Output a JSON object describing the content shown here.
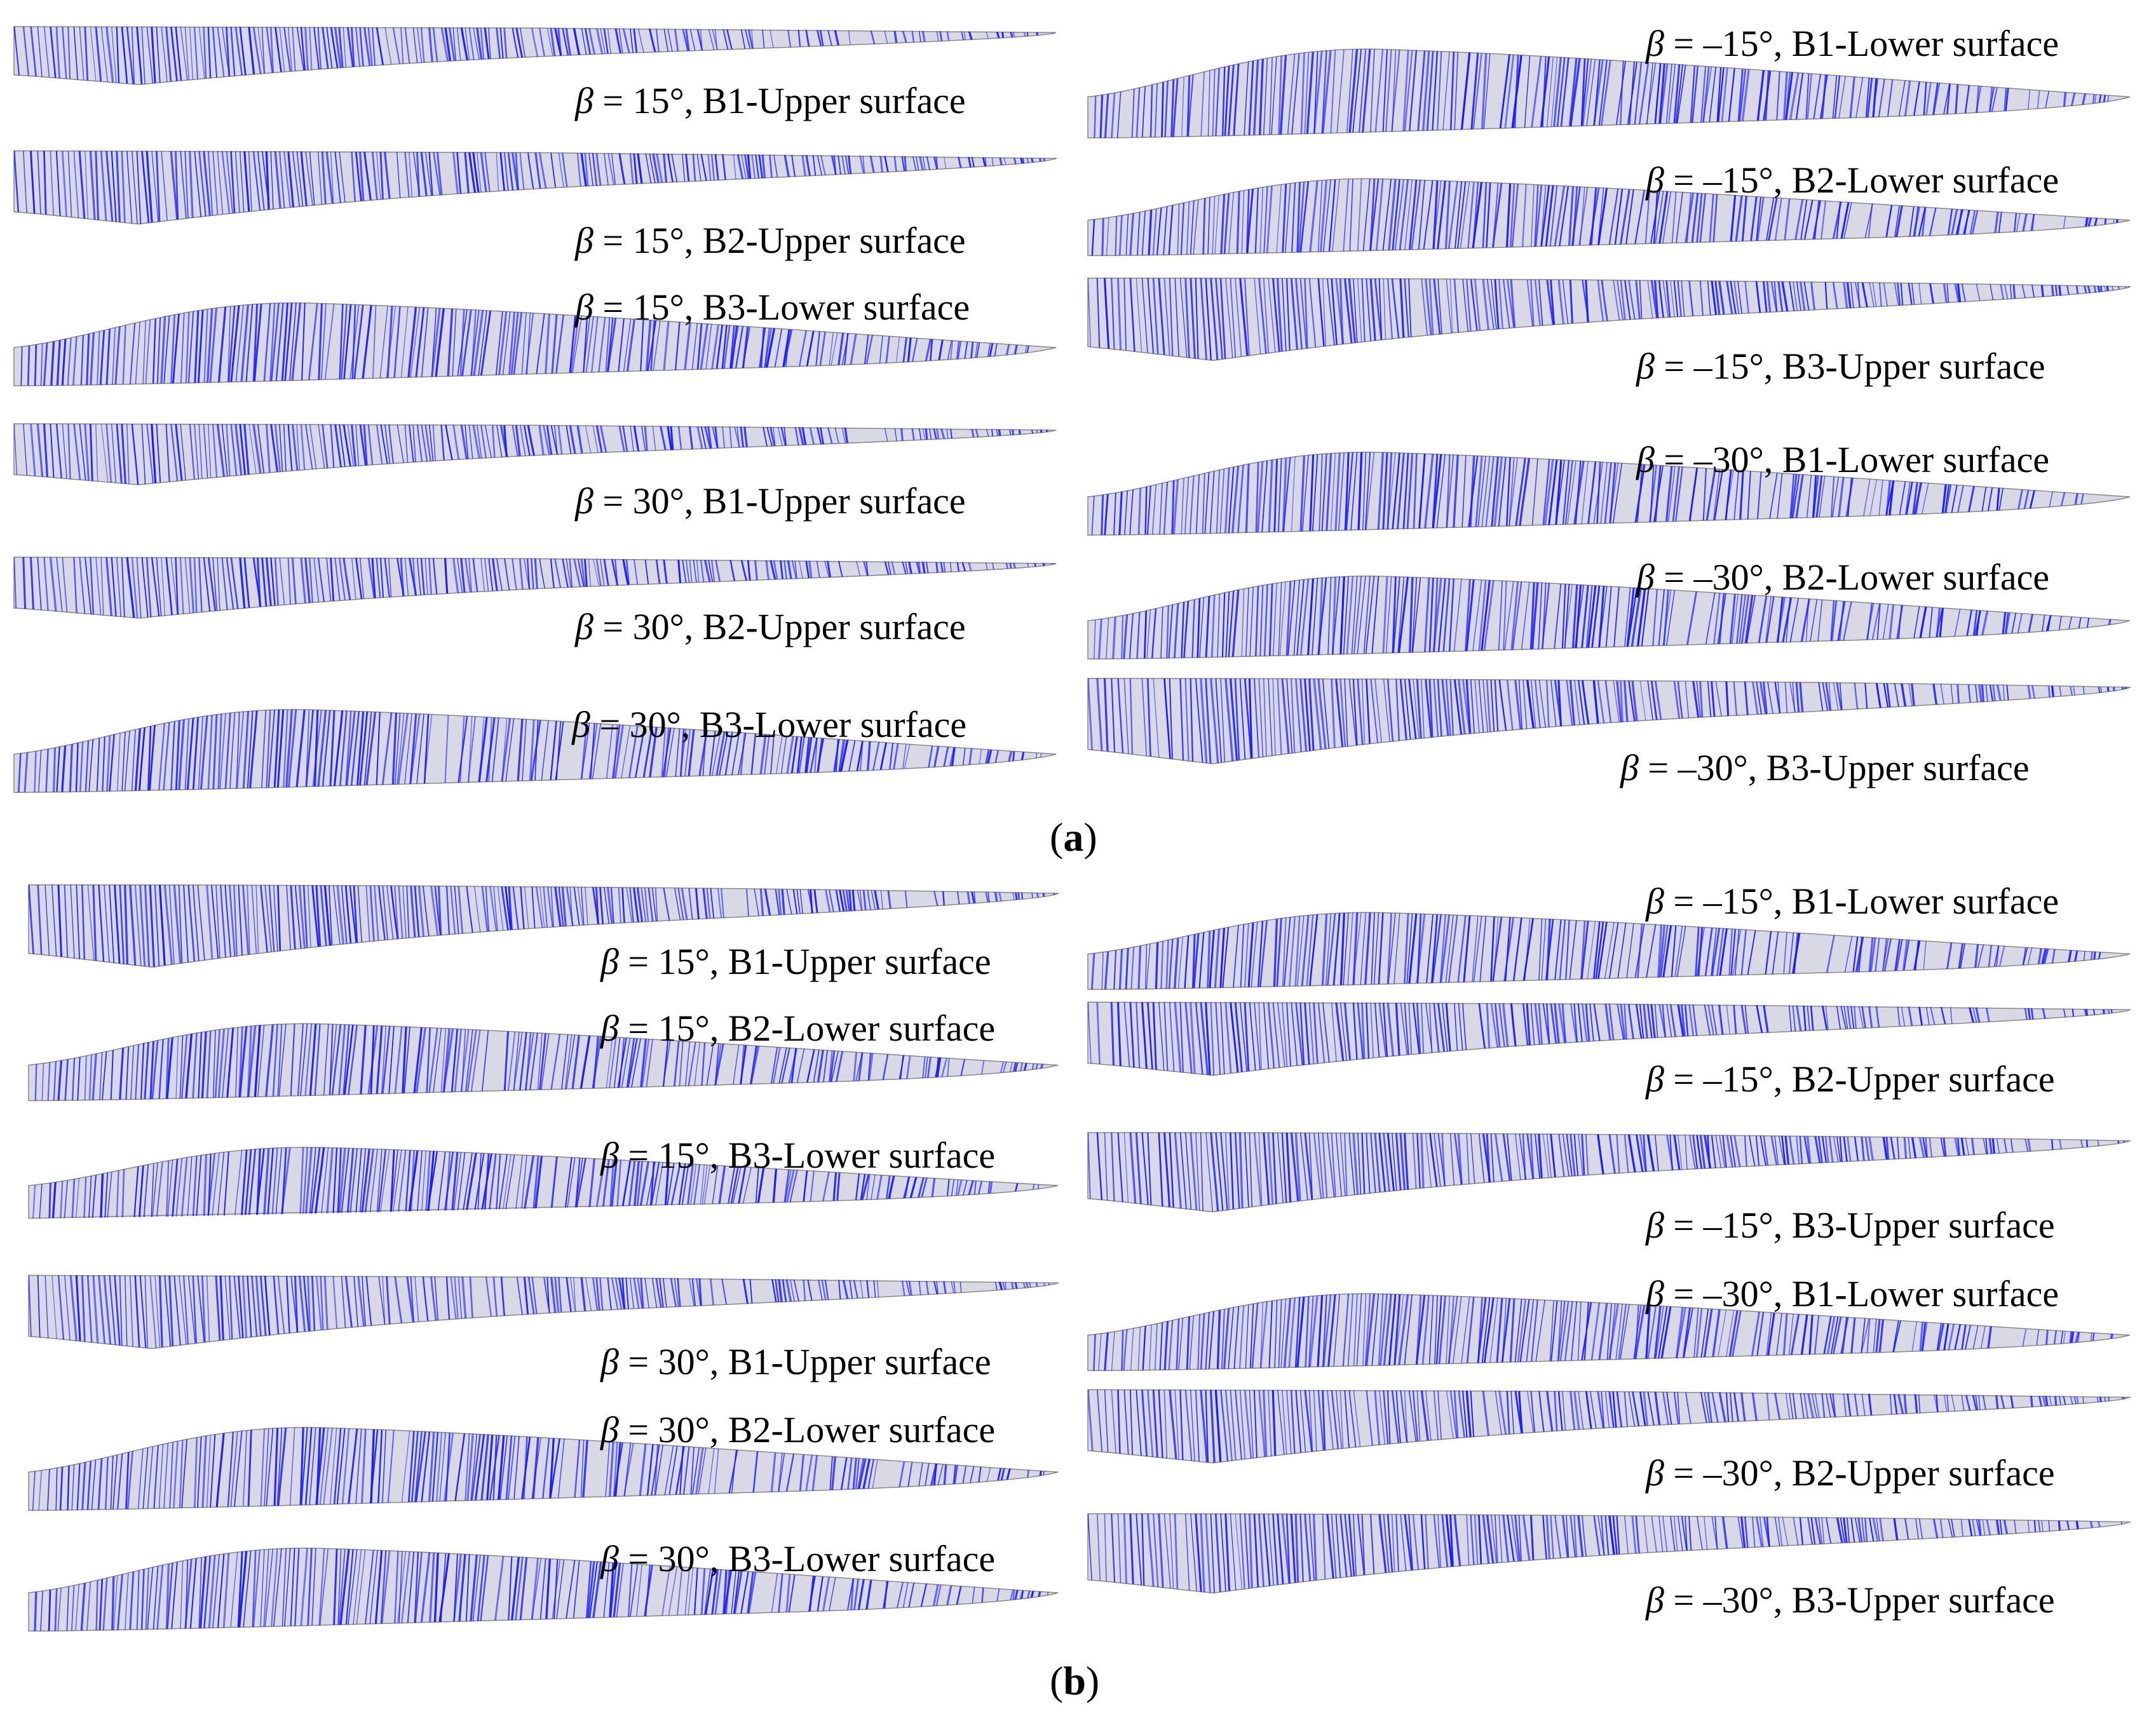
{
  "figure": {
    "subfigures": [
      {
        "label": "a",
        "panels": [
          {
            "beta": "β",
            "text": " = 15°, B1-Upper surface",
            "surface": "upper"
          },
          {
            "beta": "β",
            "text": " = 15°, B2-Upper surface",
            "surface": "upper"
          },
          {
            "beta": "β",
            "text": " = 15°, B3-Lower surface",
            "surface": "lower"
          },
          {
            "beta": "β",
            "text": " = 30°, B1-Upper surface",
            "surface": "upper"
          },
          {
            "beta": "β",
            "text": " = 30°, B2-Upper surface",
            "surface": "upper"
          },
          {
            "beta": "β",
            "text": " = 30°, B3-Lower surface",
            "surface": "lower"
          },
          {
            "beta": "β",
            "text": " = –15°, B1-Lower surface",
            "surface": "lower"
          },
          {
            "beta": "β",
            "text": " = –15°, B2-Lower surface",
            "surface": "lower"
          },
          {
            "beta": "β",
            "text": " = –15°, B3-Upper surface",
            "surface": "upper"
          },
          {
            "beta": "β",
            "text": " = –30°, B1-Lower surface",
            "surface": "lower"
          },
          {
            "beta": "β",
            "text": " = –30°, B2-Lower surface",
            "surface": "lower"
          },
          {
            "beta": "β",
            "text": " = –30°, B3-Upper surface",
            "surface": "upper"
          }
        ]
      },
      {
        "label": "b",
        "panels": [
          {
            "beta": "β",
            "text": " = 15°, B1-Upper surface",
            "surface": "upper"
          },
          {
            "beta": "β",
            "text": " = 15°, B2-Lower surface",
            "surface": "lower"
          },
          {
            "beta": "β",
            "text": " = 15°, B3-Lower surface",
            "surface": "lower"
          },
          {
            "beta": "β",
            "text": " = 30°, B1-Upper surface",
            "surface": "upper"
          },
          {
            "beta": "β",
            "text": " = 30°, B2-Lower surface",
            "surface": "lower"
          },
          {
            "beta": "β",
            "text": " = 30°, B3-Lower surface",
            "surface": "lower"
          },
          {
            "beta": "β",
            "text": " = –15°, B1-Lower surface",
            "surface": "lower"
          },
          {
            "beta": "β",
            "text": " = –15°, B2-Upper surface",
            "surface": "upper"
          },
          {
            "beta": "β",
            "text": " = –15°, B3-Upper surface",
            "surface": "upper"
          },
          {
            "beta": "β",
            "text": " = –30°, B1-Lower surface",
            "surface": "lower"
          },
          {
            "beta": "β",
            "text": " = –30°, B2-Upper surface",
            "surface": "upper"
          },
          {
            "beta": "β",
            "text": " = –30°, B3-Upper surface",
            "surface": "upper"
          }
        ]
      }
    ],
    "colors": {
      "streamline": "#1a1aff",
      "surface": "#d9d9e6",
      "background": "#ffffff"
    }
  }
}
